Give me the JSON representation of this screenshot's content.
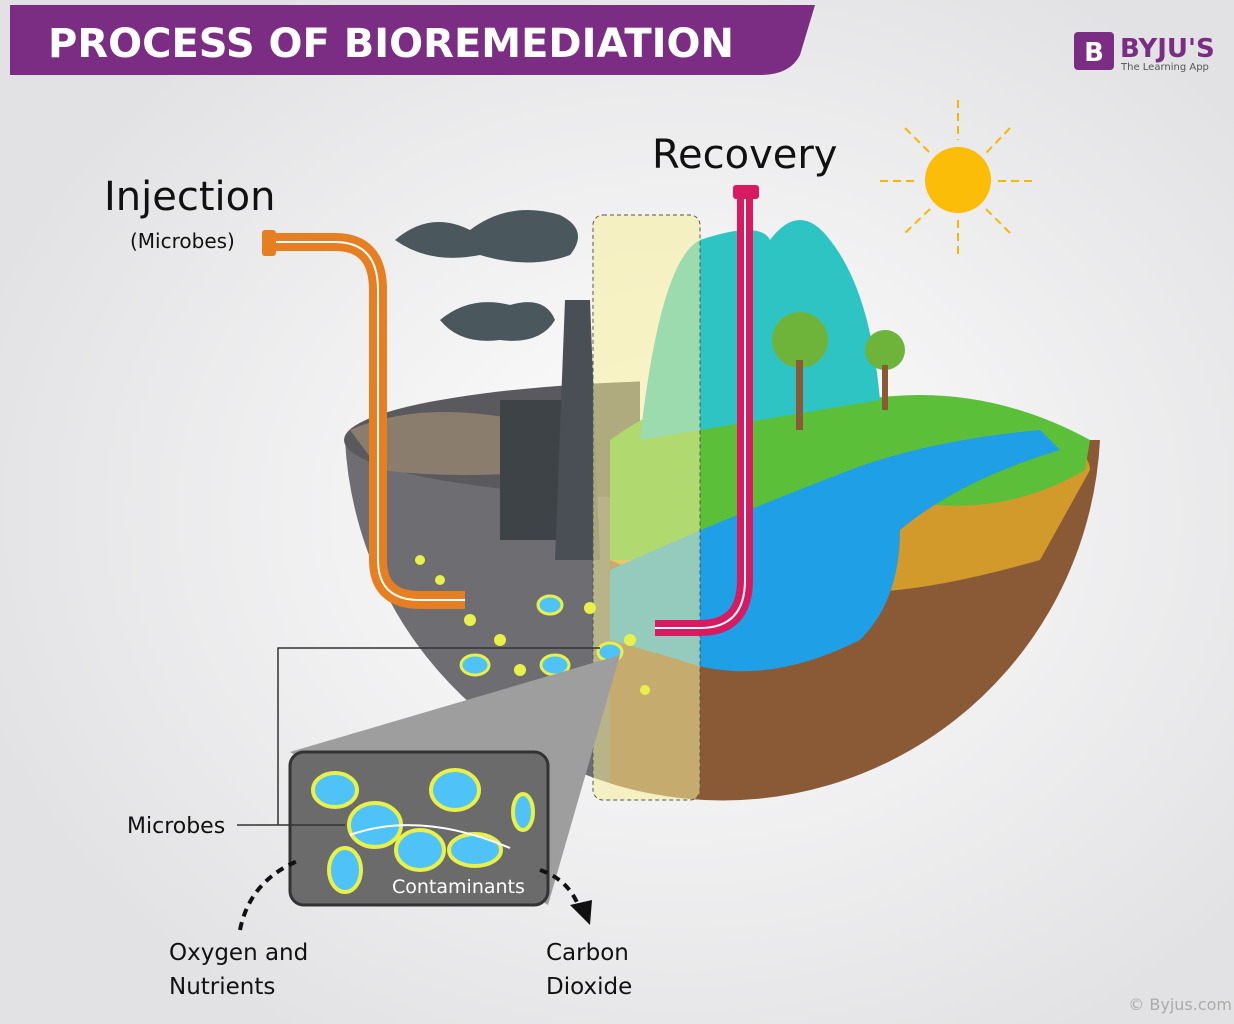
{
  "header": {
    "title": "PROCESS OF BIOREMEDIATION",
    "logo": {
      "mark": "B",
      "name": "BYJU'S",
      "tagline": "The Learning App"
    }
  },
  "labels": {
    "injection": "Injection",
    "injection_note": "(Microbes)",
    "recovery": "Recovery",
    "microbes": "Microbes",
    "contaminants": "Contaminants",
    "oxygen": [
      "Oxygen and",
      "Nutrients"
    ],
    "carbon": [
      "Carbon",
      "Dioxide"
    ]
  },
  "footer": {
    "credit": "© Byjus.com"
  }
}
